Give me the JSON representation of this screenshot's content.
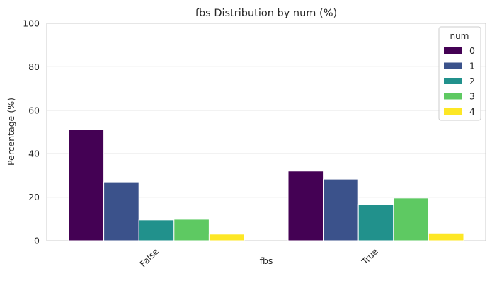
{
  "chart_data": {
    "type": "bar",
    "title": "fbs Distribution by num (%)",
    "xlabel": "fbs",
    "ylabel": "Percentage (%)",
    "categories": [
      "False",
      "True"
    ],
    "ylim": [
      0,
      100
    ],
    "yticks": [
      "0",
      "20",
      "40",
      "60",
      "80",
      "100"
    ],
    "grid": true,
    "legend": {
      "title": "num",
      "placement": "top-right"
    },
    "series": [
      {
        "name": "0",
        "color": "#440154",
        "values": [
          51,
          32
        ]
      },
      {
        "name": "1",
        "color": "#3b528b",
        "values": [
          27,
          28.3
        ]
      },
      {
        "name": "2",
        "color": "#21918c",
        "values": [
          9.5,
          16.7
        ]
      },
      {
        "name": "3",
        "color": "#5ec962",
        "values": [
          9.8,
          19.6
        ]
      },
      {
        "name": "4",
        "color": "#fde725",
        "values": [
          3,
          3.5
        ]
      }
    ]
  }
}
